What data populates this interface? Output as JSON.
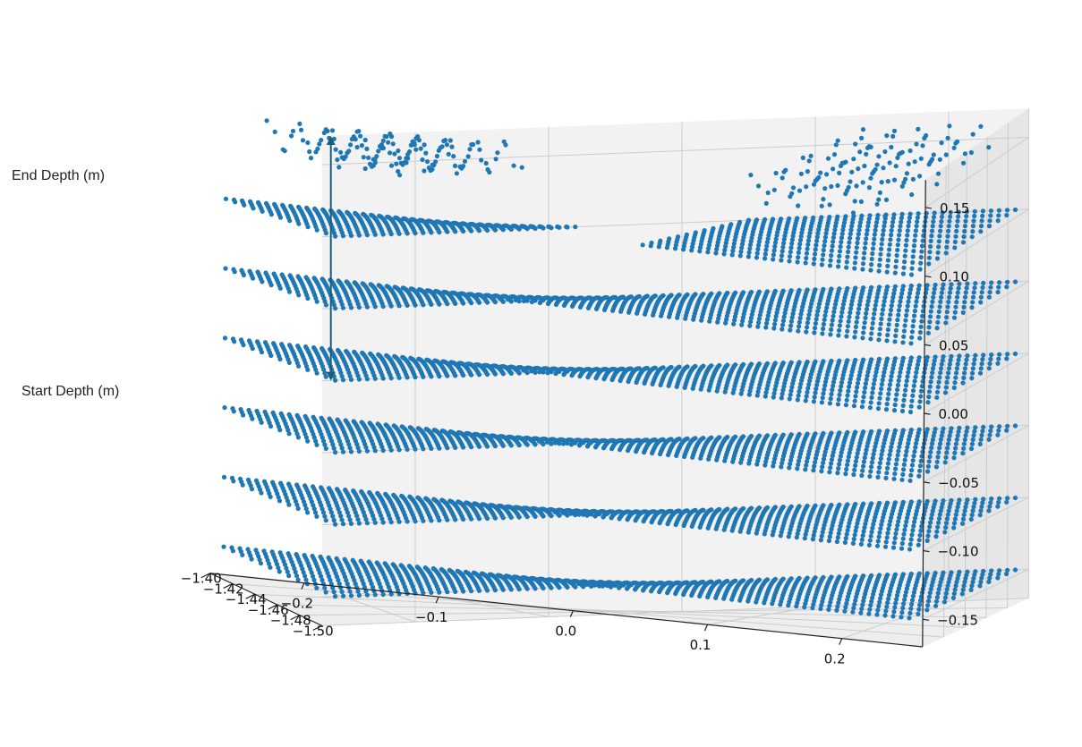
{
  "chart_data": {
    "type": "scatter",
    "projection": "3d",
    "marker_color": "#1f77b4",
    "annotation_color": "#1b5e7a",
    "grid": true,
    "axes": {
      "x": {
        "ticks": [
          -0.2,
          -0.1,
          0.0,
          0.1,
          0.2
        ],
        "tick_labels": [
          "−0.2",
          "−0.1",
          "0.0",
          "0.1",
          "0.2"
        ],
        "range": [
          -0.27,
          0.26
        ]
      },
      "y": {
        "ticks": [
          -1.5,
          -1.48,
          -1.46,
          -1.44,
          -1.42,
          -1.4
        ],
        "tick_labels": [
          "−1.50",
          "−1.48",
          "−1.46",
          "−1.44",
          "−1.42",
          "−1.40"
        ],
        "range": [
          -1.5,
          -1.4
        ]
      },
      "z": {
        "ticks": [
          -0.15,
          -0.1,
          -0.05,
          0.0,
          0.05,
          0.1,
          0.15
        ],
        "tick_labels": [
          "−0.15",
          "−0.10",
          "−0.05",
          "0.00",
          "0.05",
          "0.10",
          "0.15"
        ],
        "range": [
          -0.17,
          0.17
        ]
      }
    },
    "annotations": {
      "end_depth": "End Depth (m)",
      "start_depth": "Start Depth (m)"
    },
    "layers": [
      {
        "z": -0.15,
        "segments": [
          [
            -0.26,
            0.25
          ]
        ]
      },
      {
        "z": -0.1,
        "segments": [
          [
            -0.26,
            0.25
          ]
        ]
      },
      {
        "z": -0.05,
        "segments": [
          [
            -0.26,
            0.25
          ]
        ]
      },
      {
        "z": 0.0,
        "segments": [
          [
            -0.26,
            0.25
          ]
        ]
      },
      {
        "z": 0.05,
        "segments": [
          [
            -0.26,
            0.25
          ]
        ]
      },
      {
        "z": 0.1,
        "segments": [
          [
            -0.26,
            -0.08
          ],
          [
            0.05,
            0.25
          ]
        ]
      },
      {
        "z": 0.15,
        "segments": [
          [
            -0.23,
            -0.12
          ],
          [
            0.13,
            0.23
          ]
        ]
      }
    ]
  }
}
